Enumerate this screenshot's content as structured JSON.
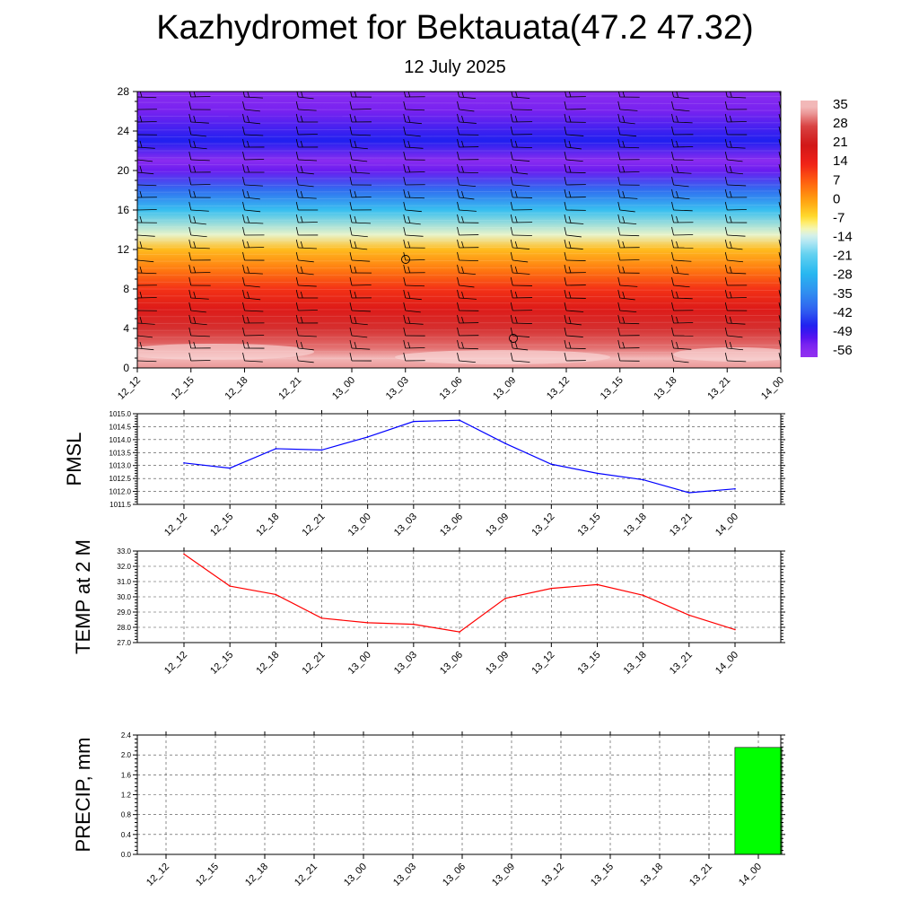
{
  "header": {
    "title": "Kazhydromet for Bektauata(47.2 47.32)",
    "subtitle": "12 July 2025"
  },
  "chart_data": [
    {
      "type": "heatmap",
      "name": "temperature-cross-section",
      "x_ticks": [
        "12_12",
        "12_15",
        "12_18",
        "12_21",
        "13_00",
        "13_03",
        "13_06",
        "13_09",
        "13_12",
        "13_15",
        "13_18",
        "13_21",
        "14_00"
      ],
      "y_ticks": [
        0,
        4,
        8,
        12,
        16,
        20,
        24,
        28
      ],
      "ylim": [
        0,
        28
      ],
      "colorbar_labels": [
        "35",
        "28",
        "21",
        "14",
        "7",
        "0",
        "-7",
        "-14",
        "-21",
        "-28",
        "-35",
        "-42",
        "-49",
        "-56"
      ],
      "vertical_profile": [
        {
          "level": 0,
          "value": 33
        },
        {
          "level": 1,
          "value": 35
        },
        {
          "level": 2,
          "value": 31
        },
        {
          "level": 4,
          "value": 25
        },
        {
          "level": 6,
          "value": 18
        },
        {
          "level": 8,
          "value": 12
        },
        {
          "level": 10,
          "value": 4
        },
        {
          "level": 12,
          "value": -3
        },
        {
          "level": 13.5,
          "value": -12
        },
        {
          "level": 16,
          "value": -26
        },
        {
          "level": 18,
          "value": -40
        },
        {
          "level": 20,
          "value": -54
        },
        {
          "level": 21,
          "value": -58
        },
        {
          "level": 23,
          "value": -48
        },
        {
          "level": 26,
          "value": -55
        },
        {
          "level": 28,
          "value": -58
        }
      ],
      "wind_barbs": true,
      "grid": false
    },
    {
      "type": "line",
      "name": "pmsl",
      "ylabel": "PMSL",
      "categories": [
        "12_12",
        "12_15",
        "12_18",
        "12_21",
        "13_00",
        "13_03",
        "13_06",
        "13_09",
        "13_12",
        "13_15",
        "13_18",
        "13_21",
        "14_00"
      ],
      "values": [
        1013.1,
        1012.9,
        1013.65,
        1013.6,
        1014.1,
        1014.7,
        1014.75,
        1013.85,
        1013.05,
        1012.7,
        1012.45,
        1011.95,
        1012.1
      ],
      "ylim": [
        1011.5,
        1015.0
      ],
      "y_ticks": [
        "1011.5",
        "1012.0",
        "1012.5",
        "1013.0",
        "1013.5",
        "1014.0",
        "1014.5",
        "1015.0"
      ],
      "color": "#0000ff",
      "grid": true
    },
    {
      "type": "line",
      "name": "temp-2m",
      "ylabel": "TEMP at 2 M",
      "categories": [
        "12_12",
        "12_15",
        "12_18",
        "12_21",
        "13_00",
        "13_03",
        "13_06",
        "13_09",
        "13_12",
        "13_15",
        "13_18",
        "13_21",
        "14_00"
      ],
      "values": [
        32.8,
        30.7,
        30.15,
        28.6,
        28.3,
        28.2,
        27.7,
        29.9,
        30.55,
        30.8,
        30.1,
        28.8,
        27.85
      ],
      "ylim": [
        27.0,
        33.0
      ],
      "y_ticks": [
        "27.0",
        "28.0",
        "29.0",
        "30.0",
        "31.0",
        "32.0",
        "33.0"
      ],
      "color": "#ff0000",
      "grid": true
    },
    {
      "type": "bar",
      "name": "precip",
      "ylabel": "PRECIP, mm",
      "categories": [
        "12_12",
        "12_15",
        "12_18",
        "12_21",
        "13_00",
        "13_03",
        "13_06",
        "13_09",
        "13_12",
        "13_15",
        "13_18",
        "13_21",
        "14_00"
      ],
      "values": [
        0,
        0,
        0,
        0,
        0,
        0,
        0,
        0,
        0,
        0,
        0,
        0,
        2.15
      ],
      "ylim": [
        0.0,
        2.4
      ],
      "y_ticks": [
        "0.0",
        "0.4",
        "0.8",
        "1.2",
        "1.6",
        "2.0",
        "2.4"
      ],
      "color": "#00ff00",
      "grid": true
    }
  ]
}
